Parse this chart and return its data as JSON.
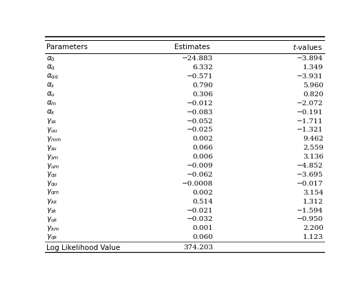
{
  "col_headers": [
    "Parameters",
    "Estimates",
    "t-values"
  ],
  "param_labels": [
    "$\\alpha_0$",
    "$\\alpha_q$",
    "$\\alpha_{qq}$",
    "$\\alpha_s$",
    "$\\alpha_u$",
    "$\\alpha_m$",
    "$\\alpha_k$",
    "$\\gamma_{ss}$",
    "$\\gamma_{uu}$",
    "$\\gamma_{mm}$",
    "$\\gamma_{su}$",
    "$\\gamma_{sm}$",
    "$\\gamma_{um}$",
    "$\\gamma_{qs}$",
    "$\\gamma_{qu}$",
    "$\\gamma_{qm}$",
    "$\\gamma_{kk}$",
    "$\\gamma_{sk}$",
    "$\\gamma_{uk}$",
    "$\\gamma_{km}$",
    "$\\gamma_{qk}$"
  ],
  "estimates": [
    "−24.883",
    "6.332",
    "−0.571",
    "0.790",
    "0.306",
    "−0.012",
    "−0.083",
    "−0.052",
    "−0.025",
    "0.002",
    "0.066",
    "0.006",
    "−0.009",
    "−0.062",
    "−0.0008",
    "0.002",
    "0.514",
    "−0.021",
    "−0.032",
    "0.001",
    "0.060"
  ],
  "tvalues": [
    "−3.894",
    "1.349",
    "−3.931",
    "5.960",
    "0.820",
    "−2.072",
    "−0.191",
    "−1.711",
    "−1.321",
    "9.462",
    "2.559",
    "3.136",
    "−4.852",
    "−3.695",
    "−0.017",
    "3.154",
    "1.312",
    "−1.594",
    "−0.950",
    "2.200",
    "1.123"
  ],
  "last_row_label": "Log Likelihood Value",
  "last_row_est": "374.203",
  "bg_color": "#ffffff",
  "font_size": 7.5
}
